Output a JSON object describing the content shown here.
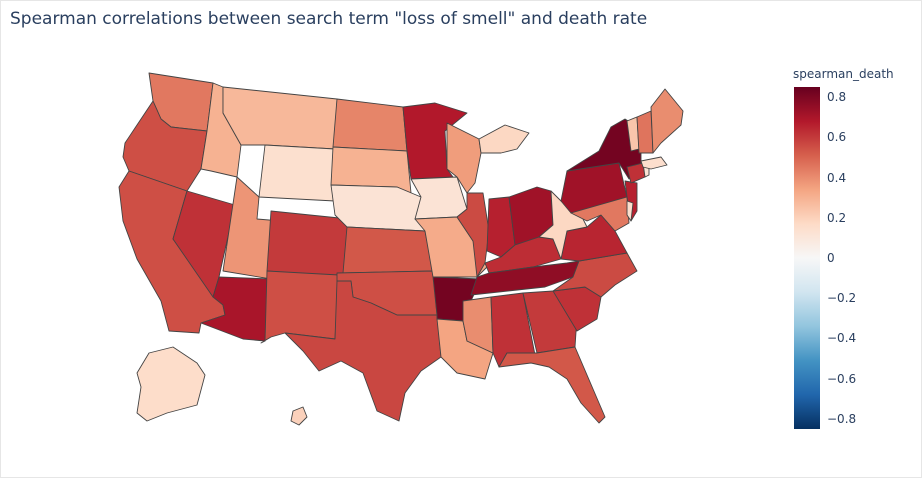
{
  "title": "Spearman correlations between search term \"loss of smell\" and death rate",
  "colorbar": {
    "title": "spearman_death",
    "range": [
      -0.85,
      0.85
    ],
    "ticks": [
      "0.8",
      "0.6",
      "0.4",
      "0.2",
      "0",
      "−0.2",
      "−0.4",
      "−0.6",
      "−0.8"
    ],
    "tick_values": [
      0.8,
      0.6,
      0.4,
      0.2,
      0,
      -0.2,
      -0.4,
      -0.6,
      -0.8
    ],
    "colorscale": [
      "#053061",
      "#2166ac",
      "#4393c3",
      "#92c5de",
      "#d1e5f0",
      "#f7f7f7",
      "#fddbc7",
      "#f4a582",
      "#d6604d",
      "#b2182b",
      "#67001f"
    ]
  },
  "map_data": {
    "type": "choropleth",
    "scope": "usa",
    "metric": "spearman_death",
    "values": {
      "WA": 0.45,
      "OR": 0.55,
      "CA": 0.55,
      "NV": 0.62,
      "ID": 0.3,
      "MT": 0.28,
      "WY": 0.14,
      "UT": 0.38,
      "AZ": 0.7,
      "CO": 0.6,
      "NM": 0.55,
      "ND": 0.42,
      "SD": 0.3,
      "NE": 0.12,
      "KS": 0.53,
      "OK": 0.55,
      "TX": 0.57,
      "MN": 0.68,
      "IA": 0.12,
      "MO": 0.32,
      "AR": 0.82,
      "LA": 0.34,
      "WI": 0.36,
      "IL": 0.56,
      "MI": 0.18,
      "IN": 0.66,
      "OH": 0.72,
      "KY": 0.63,
      "TN": 0.76,
      "MS": 0.4,
      "AL": 0.62,
      "GA": 0.6,
      "FL": 0.53,
      "SC": 0.62,
      "NC": 0.56,
      "VA": 0.65,
      "WV": 0.18,
      "PA": 0.72,
      "NY": 0.82,
      "VT": 0.24,
      "NH": 0.46,
      "ME": 0.4,
      "MA": 0.15,
      "CT": 0.62,
      "RI": 0.12,
      "NJ": 0.66,
      "DE": 0.15,
      "MD": 0.45,
      "AK": 0.16,
      "HI": 0.2
    }
  }
}
